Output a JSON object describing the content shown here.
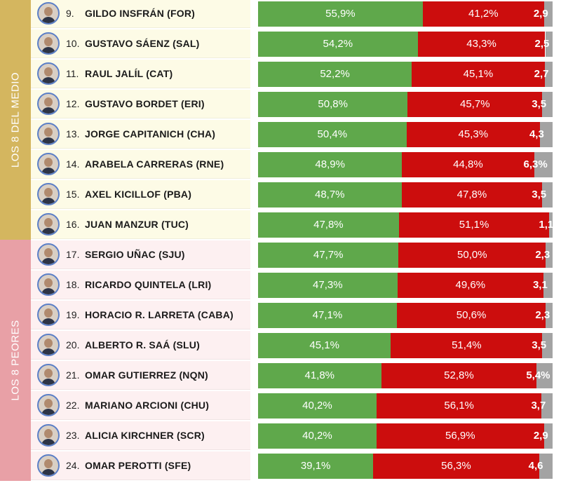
{
  "groups": [
    {
      "label": "LOS 8 DEL MEDIO",
      "color": "#d4b65f",
      "row_bg": "#fdfbe6",
      "rows": [
        0,
        7
      ]
    },
    {
      "label": "LOS 8 PEORES",
      "color": "#e8a0a6",
      "row_bg": "#fdf0f1",
      "rows": [
        8,
        15
      ]
    }
  ],
  "colors": {
    "approve": "#5fa84b",
    "disapprove": "#cc0d0d",
    "other": "#a3a3a3"
  },
  "chart_data": {
    "type": "bar",
    "stacked": true,
    "orientation": "horizontal",
    "series_keys": [
      "approve",
      "disapprove",
      "other"
    ],
    "rows": [
      {
        "rank": "9.",
        "name": "GILDO INSFRÁN (FOR)",
        "approve": 55.9,
        "disapprove": 41.2,
        "other": 2.9,
        "labels": [
          "55,9%",
          "41,2%",
          "2,9"
        ]
      },
      {
        "rank": "10.",
        "name": "GUSTAVO SÁENZ (SAL)",
        "approve": 54.2,
        "disapprove": 43.3,
        "other": 2.5,
        "labels": [
          "54,2%",
          "43,3%",
          "2,5"
        ]
      },
      {
        "rank": "11.",
        "name": "RAUL JALÍL (CAT)",
        "approve": 52.2,
        "disapprove": 45.1,
        "other": 2.7,
        "labels": [
          "52,2%",
          "45,1%",
          "2,7"
        ]
      },
      {
        "rank": "12.",
        "name": "GUSTAVO BORDET (ERI)",
        "approve": 50.8,
        "disapprove": 45.7,
        "other": 3.5,
        "labels": [
          "50,8%",
          "45,7%",
          "3,5"
        ]
      },
      {
        "rank": "13.",
        "name": "JORGE CAPITANICH (CHA)",
        "approve": 50.4,
        "disapprove": 45.3,
        "other": 4.3,
        "labels": [
          "50,4%",
          "45,3%",
          "4,3"
        ]
      },
      {
        "rank": "14.",
        "name": "ARABELA CARRERAS (RNE)",
        "approve": 48.9,
        "disapprove": 44.8,
        "other": 6.3,
        "labels": [
          "48,9%",
          "44,8%",
          "6,3%"
        ]
      },
      {
        "rank": "15.",
        "name": "AXEL KICILLOF (PBA)",
        "approve": 48.7,
        "disapprove": 47.8,
        "other": 3.5,
        "labels": [
          "48,7%",
          "47,8%",
          "3,5"
        ]
      },
      {
        "rank": "16.",
        "name": "JUAN MANZUR (TUC)",
        "approve": 47.8,
        "disapprove": 51.1,
        "other": 1.1,
        "labels": [
          "47,8%",
          "51,1%",
          "1,1"
        ]
      },
      {
        "rank": "17.",
        "name": "SERGIO UÑAC (SJU)",
        "approve": 47.7,
        "disapprove": 50.0,
        "other": 2.3,
        "labels": [
          "47,7%",
          "50,0%",
          "2,3"
        ]
      },
      {
        "rank": "18.",
        "name": "RICARDO QUINTELA (LRI)",
        "approve": 47.3,
        "disapprove": 49.6,
        "other": 3.1,
        "labels": [
          "47,3%",
          "49,6%",
          "3,1"
        ]
      },
      {
        "rank": "19.",
        "name": "HORACIO R. LARRETA (CABA)",
        "approve": 47.1,
        "disapprove": 50.6,
        "other": 2.3,
        "labels": [
          "47,1%",
          "50,6%",
          "2,3"
        ]
      },
      {
        "rank": "20.",
        "name": "ALBERTO R. SAÁ (SLU)",
        "approve": 45.1,
        "disapprove": 51.4,
        "other": 3.5,
        "labels": [
          "45,1%",
          "51,4%",
          "3,5"
        ]
      },
      {
        "rank": "21.",
        "name": "OMAR GUTIERREZ (NQN)",
        "approve": 41.8,
        "disapprove": 52.8,
        "other": 5.4,
        "labels": [
          "41,8%",
          "52,8%",
          "5,4%"
        ]
      },
      {
        "rank": "22.",
        "name": "MARIANO ARCIONI (CHU)",
        "approve": 40.2,
        "disapprove": 56.1,
        "other": 3.7,
        "labels": [
          "40,2%",
          "56,1%",
          "3,7"
        ]
      },
      {
        "rank": "23.",
        "name": "ALICIA KIRCHNER (SCR)",
        "approve": 40.2,
        "disapprove": 56.9,
        "other": 2.9,
        "labels": [
          "40,2%",
          "56,9%",
          "2,9"
        ]
      },
      {
        "rank": "24.",
        "name": "OMAR PEROTTI (SFE)",
        "approve": 39.1,
        "disapprove": 56.3,
        "other": 4.6,
        "labels": [
          "39,1%",
          "56,3%",
          "4,6"
        ]
      }
    ]
  }
}
